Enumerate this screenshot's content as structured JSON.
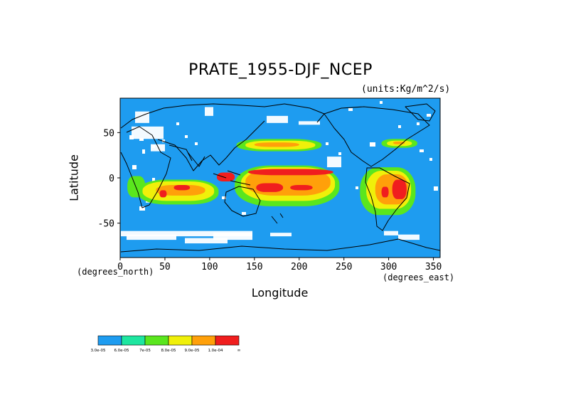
{
  "chart_data": {
    "type": "heatmap",
    "title": "PRATE_1955-DJF_NCEP",
    "units": "(units:Kg/m^2/s)",
    "xlabel": "Longitude",
    "ylabel": "Latitude",
    "x_unit_note": "(degrees_east)",
    "y_unit_note": "(degrees_north)",
    "xlim": [
      0,
      357.5
    ],
    "ylim": [
      -88,
      88
    ],
    "x_ticks": [
      "0",
      "50",
      "100",
      "150",
      "200",
      "250",
      "300",
      "350"
    ],
    "y_ticks": [
      "50",
      "0",
      "-50"
    ],
    "x_tick_values": [
      0,
      50,
      100,
      150,
      200,
      250,
      300,
      350
    ],
    "y_tick_values": [
      50,
      0,
      -50
    ],
    "colorbar": {
      "levels": [
        "3.0e-05",
        "6.0e-05",
        "7e-05",
        "8.0e-05",
        "9.0e-05",
        "1.0e-04"
      ],
      "colors": [
        "#1e9cf0",
        "#1ee6a0",
        "#5ae61e",
        "#f0f00a",
        "#ffa00a",
        "#f01e1e"
      ],
      "end_label": "∞"
    },
    "map_background_color": "#1e9cf0",
    "high_precip_regions": [
      {
        "lon_range": [
          140,
          240
        ],
        "lat_range": [
          2,
          12
        ],
        "level": "1.0e-04"
      },
      {
        "lon_range": [
          150,
          185
        ],
        "lat_range": [
          -18,
          -5
        ],
        "level": "1.0e-04"
      },
      {
        "lon_range": [
          305,
          320
        ],
        "lat_range": [
          -25,
          0
        ],
        "level": "1.0e-04"
      },
      {
        "lon_range": [
          270,
          330
        ],
        "lat_range": [
          -40,
          10
        ],
        "level": "9.0e-05"
      },
      {
        "lon_range": [
          20,
          110
        ],
        "lat_range": [
          -30,
          0
        ],
        "level": "8.0e-05"
      },
      {
        "lon_range": [
          140,
          240
        ],
        "lat_range": [
          -30,
          12
        ],
        "level": "8.0e-05"
      },
      {
        "lon_range": [
          130,
          220
        ],
        "lat_range": [
          30,
          45
        ],
        "level": "8.0e-05"
      },
      {
        "lon_range": [
          295,
          330
        ],
        "lat_range": [
          35,
          45
        ],
        "level": "8.0e-05"
      }
    ]
  }
}
